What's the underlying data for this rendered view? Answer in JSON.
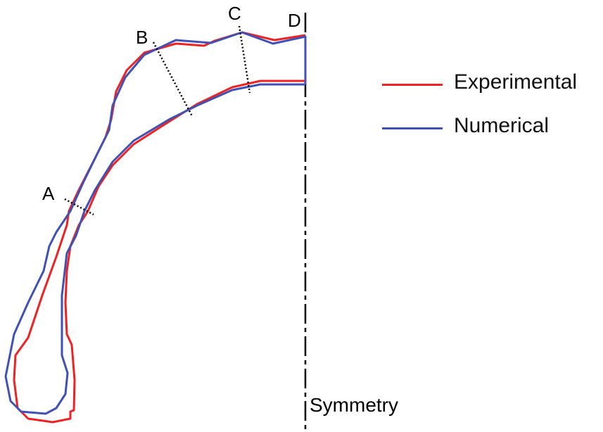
{
  "labels": {
    "a": "A",
    "b": "B",
    "c": "C",
    "d": "D",
    "axis": "Symmetry"
  },
  "legend": [
    {
      "label": "Experimental",
      "color": "#ee2222"
    },
    {
      "label": "Numerical",
      "color": "#3f51b5"
    }
  ]
}
